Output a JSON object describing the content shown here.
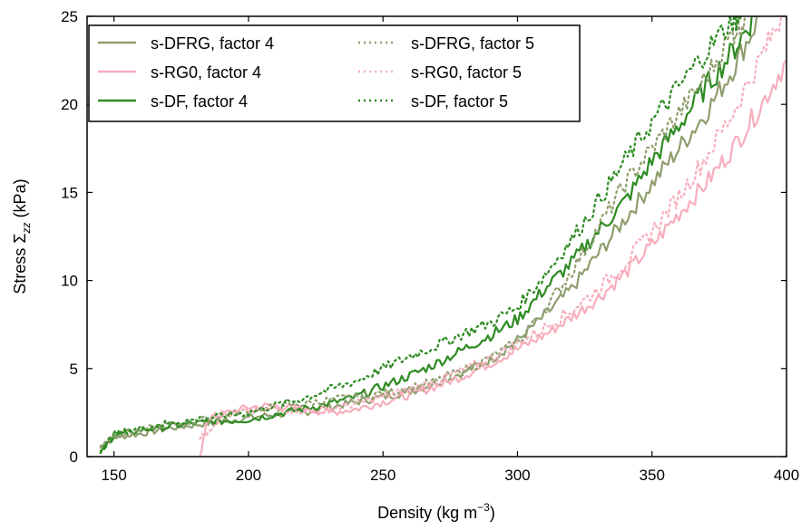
{
  "chart_data": {
    "type": "line",
    "xlabel": "Density (kg m",
    "xlabel_sup": "−3",
    "xlabel_end": ")",
    "ylabel": "Stress Σ",
    "ylabel_sub": "zz",
    "ylabel_end": " (kPa)",
    "xlim": [
      140,
      400
    ],
    "ylim": [
      0,
      25
    ],
    "xticks": [
      "150",
      "200",
      "250",
      "300",
      "350",
      "400"
    ],
    "yticks": [
      "0",
      "5",
      "10",
      "15",
      "20",
      "25"
    ],
    "grid": false,
    "legend_position": "top-left",
    "series": [
      {
        "name": "s-DFRG, factor 4",
        "color": "#8f9e6e",
        "style": "solid",
        "x": [
          145,
          150,
          160,
          170,
          180,
          190,
          200,
          210,
          220,
          230,
          240,
          250,
          260,
          270,
          280,
          290,
          300,
          310,
          320,
          330,
          340,
          350,
          360,
          370,
          380,
          390
        ],
        "y": [
          0.5,
          1.1,
          1.3,
          1.6,
          1.8,
          2.0,
          2.2,
          2.4,
          2.5,
          2.8,
          3.1,
          3.4,
          3.7,
          4.2,
          4.8,
          5.5,
          6.6,
          8.0,
          9.5,
          11.5,
          13.5,
          15.5,
          17.5,
          19.5,
          22.0,
          25.0
        ]
      },
      {
        "name": "s-RG0, factor 4",
        "color": "#f7aebd",
        "style": "solid",
        "x": [
          182,
          185,
          190,
          200,
          210,
          220,
          230,
          240,
          250,
          260,
          270,
          280,
          290,
          300,
          310,
          320,
          330,
          340,
          350,
          360,
          370,
          380,
          390,
          400
        ],
        "y": [
          0.0,
          2.2,
          2.4,
          2.8,
          2.9,
          2.7,
          2.5,
          2.7,
          3.1,
          3.5,
          4.0,
          4.6,
          5.3,
          6.1,
          6.9,
          7.9,
          9.0,
          10.4,
          12.0,
          13.8,
          15.5,
          17.5,
          19.8,
          22.5
        ]
      },
      {
        "name": "s-DF, factor 4",
        "color": "#2e8b22",
        "style": "solid",
        "x": [
          145,
          150,
          160,
          170,
          180,
          190,
          200,
          210,
          220,
          230,
          240,
          250,
          260,
          270,
          280,
          290,
          300,
          310,
          320,
          330,
          340,
          350,
          360,
          370,
          380,
          388
        ],
        "y": [
          0.2,
          1.2,
          1.5,
          1.7,
          1.9,
          2.0,
          2.1,
          2.4,
          2.7,
          3.0,
          3.4,
          4.0,
          4.6,
          5.3,
          6.1,
          6.9,
          7.8,
          9.5,
          11.0,
          12.8,
          14.5,
          16.8,
          18.8,
          21.0,
          23.0,
          25.0
        ]
      },
      {
        "name": "s-DFRG, factor 5",
        "color": "#8f9e6e",
        "style": "dotted",
        "x": [
          145,
          150,
          160,
          170,
          180,
          190,
          200,
          210,
          220,
          230,
          240,
          250,
          260,
          270,
          280,
          290,
          300,
          310,
          320,
          330,
          340,
          350,
          360,
          370,
          380,
          385
        ],
        "y": [
          0.6,
          1.2,
          1.5,
          1.8,
          2.0,
          2.3,
          2.6,
          2.8,
          3.0,
          3.2,
          3.4,
          3.6,
          3.9,
          4.3,
          4.9,
          5.6,
          6.5,
          8.3,
          10.5,
          13.0,
          15.5,
          17.5,
          19.5,
          21.5,
          24.0,
          25.0
        ]
      },
      {
        "name": "s-RG0, factor 5",
        "color": "#f7aebd",
        "style": "dotted",
        "x": [
          182,
          190,
          200,
          210,
          220,
          230,
          240,
          250,
          260,
          270,
          280,
          290,
          300,
          310,
          320,
          330,
          340,
          350,
          360,
          370,
          380,
          390,
          398
        ],
        "y": [
          1.0,
          2.3,
          2.6,
          2.7,
          2.6,
          2.7,
          3.0,
          3.4,
          3.8,
          4.3,
          4.9,
          5.6,
          6.4,
          7.3,
          8.3,
          9.5,
          11.0,
          12.8,
          14.8,
          17.0,
          19.5,
          22.5,
          25.0
        ]
      },
      {
        "name": "s-DF, factor 5",
        "color": "#2e8b22",
        "style": "dotted",
        "x": [
          145,
          150,
          160,
          170,
          180,
          190,
          200,
          210,
          220,
          230,
          240,
          250,
          260,
          270,
          280,
          290,
          300,
          310,
          320,
          330,
          340,
          350,
          360,
          370,
          380,
          383
        ],
        "y": [
          0.3,
          1.3,
          1.6,
          1.9,
          2.1,
          2.3,
          2.5,
          2.9,
          3.3,
          3.8,
          4.3,
          5.0,
          5.7,
          6.3,
          7.0,
          7.6,
          8.5,
          10.3,
          12.3,
          14.5,
          16.8,
          19.0,
          21.0,
          23.0,
          24.8,
          25.0
        ]
      }
    ]
  }
}
